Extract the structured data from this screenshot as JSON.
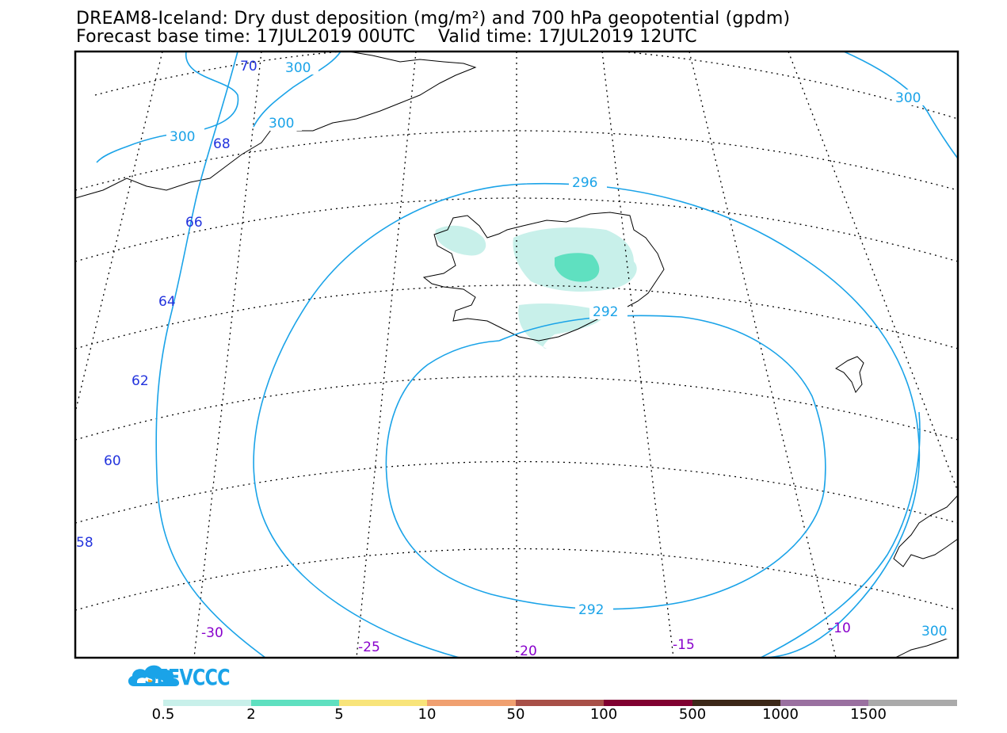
{
  "title": {
    "line1": "DREAM8-Iceland: Dry dust deposition (mg/m²) and 700 hPa geopotential (gpdm)",
    "line2": "Forecast base time: 17JUL2019 00UTC    Valid time: 17JUL2019 12UTC"
  },
  "map": {
    "contour_color": "#1aa3e8",
    "lat_label_color": "#2233dd",
    "lon_label_color": "#8800cc",
    "contour_labels": [
      "300",
      "300",
      "300",
      "300",
      "300",
      "296",
      "292",
      "292"
    ],
    "lat_labels": [
      "70",
      "68",
      "66",
      "64",
      "62",
      "60",
      "58"
    ],
    "lon_labels": [
      "-30",
      "-25",
      "-20",
      "-15",
      "-10"
    ]
  },
  "logo": {
    "text": "SEEVCCC"
  },
  "colorbar": {
    "colors": [
      "#c8f0ea",
      "#5fe0c0",
      "#f8e47a",
      "#f0a070",
      "#a85048",
      "#800030",
      "#3c2818",
      "#9a70a0",
      "#aaaaaa"
    ],
    "labels": [
      "0.5",
      "2",
      "5",
      "10",
      "50",
      "100",
      "500",
      "1000",
      "1500"
    ]
  }
}
